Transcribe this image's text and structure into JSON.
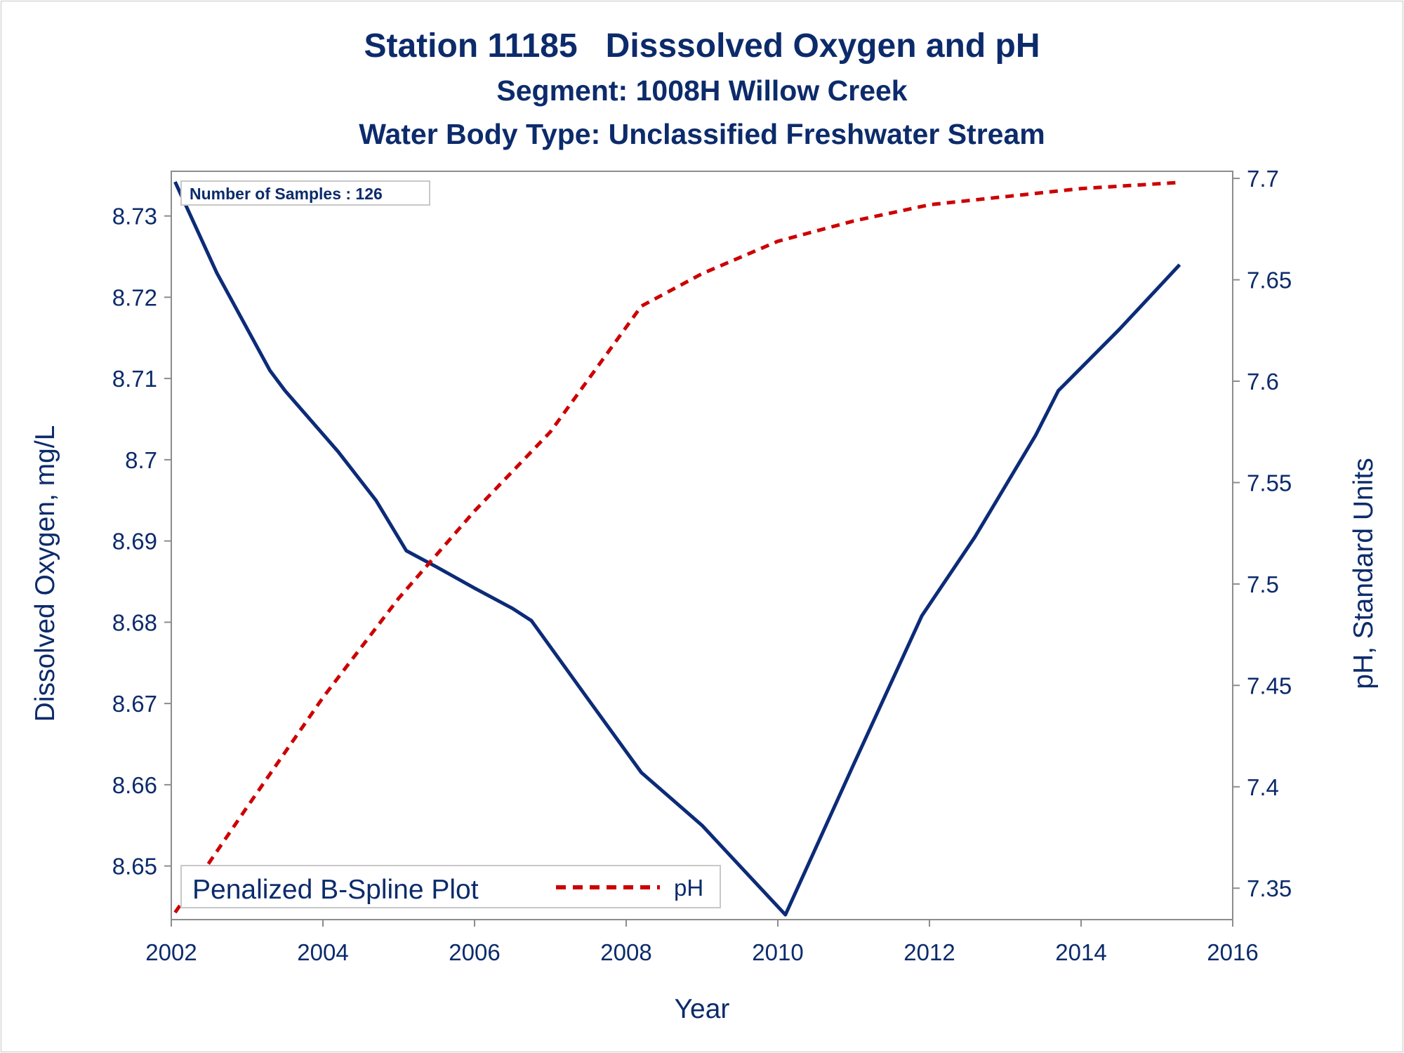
{
  "titles": {
    "line1_a": "Station 11185",
    "line1_b": "Disssolved Oxygen and pH",
    "line2": "Segment: 1008H  Willow Creek",
    "line3": "Water Body Type: Unclassified Freshwater Stream"
  },
  "annotation": "Number of Samples : 126",
  "legend": {
    "title": "Penalized B-Spline Plot",
    "entry": "pH"
  },
  "colors": {
    "do_line": "#0c2b78",
    "ph_line": "#cc0000",
    "text": "#0c2b6b",
    "axis": "#8c8c8c"
  },
  "chart_data": {
    "type": "line",
    "xlabel": "Year",
    "ylabel": "Dissolved Oxygen, mg/L",
    "y2label": "pH, Standard Units",
    "xlim": [
      2002,
      2016
    ],
    "ylim": [
      8.6434,
      8.7355
    ],
    "y2lim": [
      7.3345,
      7.7035
    ],
    "xticks": [
      2002,
      2004,
      2006,
      2008,
      2010,
      2012,
      2014,
      2016
    ],
    "yticks": [
      8.65,
      8.66,
      8.67,
      8.68,
      8.69,
      8.7,
      8.71,
      8.72,
      8.73
    ],
    "y2ticks": [
      7.35,
      7.4,
      7.45,
      7.5,
      7.55,
      7.6,
      7.65,
      7.7
    ],
    "grid": false,
    "legend_position": "bottom-left",
    "series": [
      {
        "name": "",
        "axis": "left",
        "style": "solid",
        "x": [
          2002.05,
          2002.6,
          2003.3,
          2003.5,
          2004.2,
          2004.7,
          2005.1,
          2005.5,
          2006.0,
          2006.5,
          2006.75,
          2007.5,
          2008.2,
          2009.0,
          2010.1,
          2011.0,
          2011.9,
          2012.6,
          2013.4,
          2013.7,
          2014.5,
          2015.3
        ],
        "y": [
          8.7342,
          8.723,
          8.711,
          8.7085,
          8.701,
          8.695,
          8.6888,
          8.6868,
          8.6842,
          8.6817,
          8.6802,
          8.6705,
          8.6615,
          8.655,
          8.644,
          8.6625,
          8.6808,
          8.6905,
          8.703,
          8.7085,
          8.716,
          8.724
        ]
      },
      {
        "name": "pH",
        "axis": "right",
        "style": "dashed",
        "x": [
          2002.05,
          2003.0,
          2004.0,
          2005.0,
          2006.0,
          2007.0,
          2008.2,
          2009.0,
          2010.0,
          2011.0,
          2012.0,
          2013.0,
          2014.0,
          2015.3
        ],
        "y": [
          7.338,
          7.39,
          7.444,
          7.493,
          7.536,
          7.575,
          7.637,
          7.653,
          7.669,
          7.679,
          7.687,
          7.691,
          7.695,
          7.698
        ]
      }
    ]
  }
}
